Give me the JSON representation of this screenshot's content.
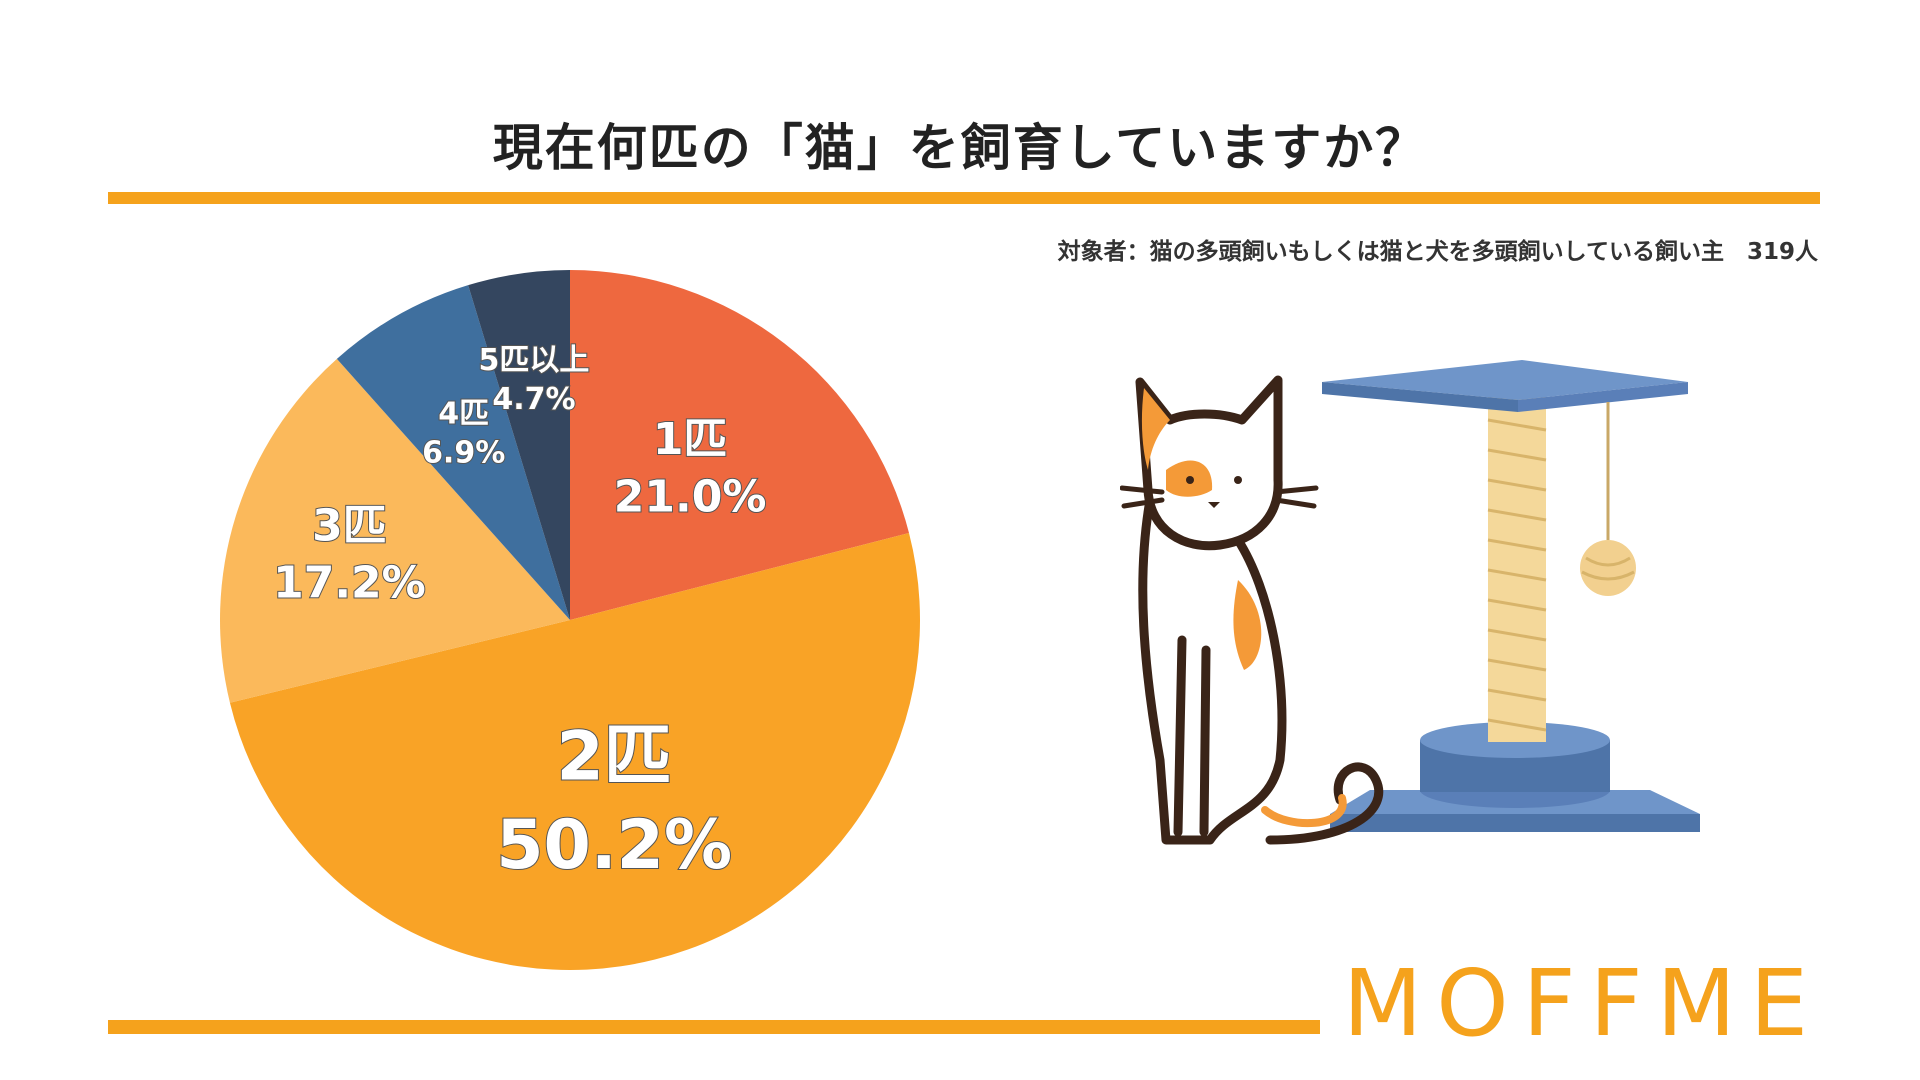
{
  "header": {
    "title": "現在何匹の「猫」を飼育していますか？",
    "subject": "対象者：猫の多頭飼いもしくは猫と犬を多頭飼いしている飼い主　319人"
  },
  "brand": {
    "name": "MOFFME"
  },
  "colors": {
    "accent": "#F5A21C",
    "slice_1": "#EE683F",
    "slice_2": "#F9A326",
    "slice_3": "#FBB95B",
    "slice_4": "#3F6F9E",
    "slice_5": "#34465F"
  },
  "illustration": {
    "icon": "calico-cat-with-cat-tower-illustration"
  },
  "chart_data": {
    "type": "pie",
    "title": "現在何匹の「猫」を飼育していますか？",
    "start_angle": "12 o'clock, clockwise",
    "slices": [
      {
        "label": "1匹",
        "value": 21.0,
        "value_label": "21.0%",
        "color": "#EE683F"
      },
      {
        "label": "2匹",
        "value": 50.2,
        "value_label": "50.2%",
        "color": "#F9A326"
      },
      {
        "label": "3匹",
        "value": 17.2,
        "value_label": "17.2%",
        "color": "#FBB95B"
      },
      {
        "label": "4匹",
        "value": 6.9,
        "value_label": "6.9%",
        "color": "#3F6F9E"
      },
      {
        "label": "5匹以上",
        "value": 4.7,
        "value_label": "4.7%",
        "color": "#34465F"
      }
    ]
  }
}
